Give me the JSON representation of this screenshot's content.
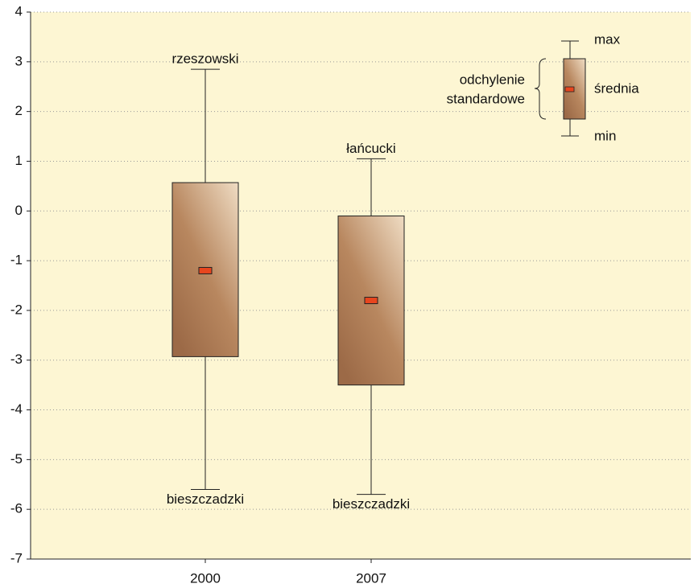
{
  "chart_data": {
    "type": "box",
    "categories": [
      "2000",
      "2007"
    ],
    "max": [
      2.85,
      1.05
    ],
    "upper": [
      0.57,
      -0.1
    ],
    "mean": [
      -1.2,
      -1.8
    ],
    "lower": [
      -2.93,
      -3.5
    ],
    "min": [
      -5.6,
      -5.7
    ],
    "max_labels": [
      "rzeszowski",
      "łańcucki"
    ],
    "min_labels": [
      "bieszczadzki",
      "bieszczadzki"
    ],
    "ylim": [
      -7,
      4
    ],
    "yticks": [
      -7,
      -6,
      -5,
      -4,
      -3,
      -2,
      -1,
      0,
      1,
      2,
      3,
      4
    ],
    "grid": true,
    "legend": {
      "max": "max",
      "mean": "średnia",
      "min": "min",
      "sd": [
        "odchylenie",
        "standardowe"
      ]
    }
  }
}
